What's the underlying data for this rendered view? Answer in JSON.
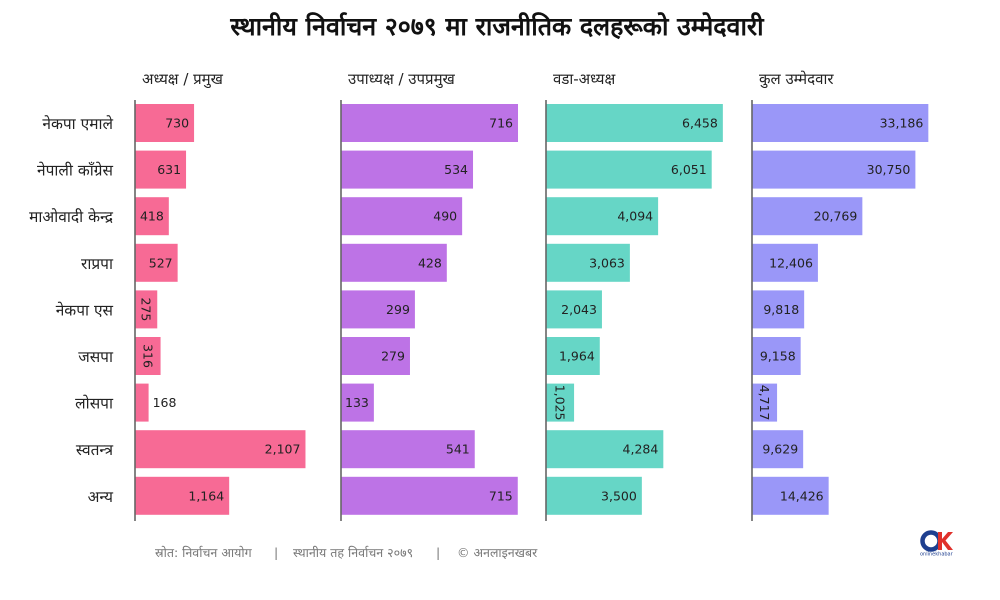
{
  "chart_data": {
    "type": "bar",
    "orientation": "horizontal",
    "title": "स्थानीय निर्वाचन २०७९ मा राजनीतिक दलहरूको उम्मेदवारी",
    "categories": [
      "नेकपा एमाले",
      "नेपाली काँग्रेस",
      "माओवादी केन्द्र",
      "राप्रपा",
      "नेकपा एस",
      "जसपा",
      "लोसपा",
      "स्वतन्त्र",
      "अन्य"
    ],
    "series": [
      {
        "name": "अध्यक्ष / प्रमुख",
        "color": "#f76a95",
        "values": [
          730,
          631,
          418,
          527,
          275,
          316,
          168,
          2107,
          1164
        ],
        "labels": [
          "730",
          "631",
          "418",
          "527",
          "275",
          "316",
          "168",
          "2,107",
          "1,164"
        ],
        "xlim": [
          0,
          2200
        ]
      },
      {
        "name": "उपाध्यक्ष / उपप्रमुख",
        "color": "#bd73e6",
        "values": [
          716,
          534,
          490,
          428,
          299,
          279,
          133,
          541,
          715
        ],
        "labels": [
          "716",
          "534",
          "490",
          "428",
          "299",
          "279",
          "133",
          "541",
          "715"
        ],
        "xlim": [
          0,
          720
        ]
      },
      {
        "name": "वडा-अध्यक्ष",
        "color": "#66d6c6",
        "values": [
          6458,
          6051,
          4094,
          3063,
          2043,
          1964,
          1025,
          4284,
          3500
        ],
        "labels": [
          "6,458",
          "6,051",
          "4,094",
          "3,063",
          "2,043",
          "1,964",
          "1,025",
          "4,284",
          "3,500"
        ],
        "xlim": [
          0,
          6500
        ]
      },
      {
        "name": "कुल उम्मेदवार",
        "color": "#9a97f8",
        "values": [
          33186,
          30750,
          20769,
          12406,
          9818,
          9158,
          4717,
          9629,
          14426
        ],
        "labels": [
          "33,186",
          "30,750",
          "20,769",
          "12,406",
          "9,818",
          "9,158",
          "4,717",
          "9,629",
          "14,426"
        ],
        "xlim": [
          0,
          33500
        ]
      }
    ],
    "grid": false,
    "legend": "none"
  },
  "footer": {
    "source": "स्रोत: निर्वाचन आयोग",
    "sep1": "|",
    "event": "स्थानीय तह निर्वाचन २०७९",
    "sep2": "|",
    "credit": "© अनलाइनखबर"
  },
  "logo": {
    "mark": "OK",
    "text": "onlinekhabar",
    "colors": {
      "o": "#1e3f8f",
      "k": "#e0312b"
    }
  }
}
